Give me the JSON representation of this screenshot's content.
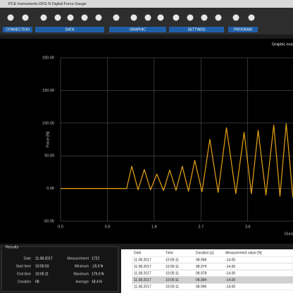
{
  "window": {
    "title": "PCE Instruments DFG N Digital Force Gauge"
  },
  "toolbar": {
    "groups": [
      "CONNECTION",
      "DATA",
      "GRAPHIC",
      "SETTINGS",
      "PROGRAM"
    ]
  },
  "chart": {
    "type": "line",
    "title": "Graphic eva",
    "x_label": "Durati",
    "y_label": "Force [N]",
    "x": [
      0,
      1.27,
      1.37,
      1.49,
      1.61,
      1.73,
      1.85,
      1.98,
      2.1,
      2.22,
      2.34,
      2.46,
      2.58,
      2.72,
      2.87,
      3.03,
      3.19,
      3.37,
      3.53,
      3.67,
      3.8,
      3.95,
      4.1,
      4.22,
      4.34,
      4.47
    ],
    "values": [
      0,
      0,
      34,
      -2,
      29,
      -2,
      22,
      -3,
      28,
      -3,
      34,
      -4,
      43,
      -5,
      75,
      -6,
      93,
      -8,
      86,
      -8,
      89,
      -10,
      97,
      -12,
      99,
      -14
    ],
    "color": "#e8a317",
    "xlim": [
      0,
      4.47
    ],
    "ylim": [
      -50,
      200
    ],
    "xticks": [
      {
        "value": 0,
        "label": "0.0"
      },
      0.9,
      1.8,
      2.7,
      3.6
    ],
    "yticks": [
      {
        "value": 200,
        "label": "200.00"
      },
      {
        "value": 150,
        "label": "150.00"
      },
      {
        "value": 100,
        "label": "100.00"
      },
      {
        "value": 50,
        "label": "50.00"
      },
      {
        "value": 0,
        "label": "0.00"
      },
      {
        "value": -50,
        "label": "-50.00"
      }
    ],
    "grid": true
  },
  "results": {
    "title": "Results",
    "fields": [
      {
        "label": "Date",
        "value": "11.08.2017"
      },
      {
        "label": "Start time",
        "value": "10:05:03"
      },
      {
        "label": "End time",
        "value": "10:05:11"
      },
      {
        "label": "Duration",
        "value": "08"
      },
      {
        "label": "Measurement",
        "value": "1722"
      },
      {
        "label": "Minimum",
        "value": "-15.0 N"
      },
      {
        "label": "Maximum",
        "value": "179.0 N"
      },
      {
        "label": "Average",
        "value": "18.4 N"
      }
    ]
  },
  "table": {
    "columns": [
      "Date",
      "Time",
      "Duration [s]",
      "Measurement value [N]"
    ],
    "rows": [
      [
        "11.08.2017",
        "10:05:11",
        "08.968",
        "-14.00"
      ],
      [
        "11.08.2017",
        "10:05:11",
        "08.974",
        "-14.00"
      ],
      [
        "11.08.2017",
        "10:05:11",
        "08.978",
        "-14.00"
      ],
      [
        "11.08.2017",
        "10:05:11",
        "08.984",
        "-14.00"
      ],
      [
        "11.08.2017",
        "10:05:11",
        "08.990",
        "-14.00"
      ]
    ]
  }
}
